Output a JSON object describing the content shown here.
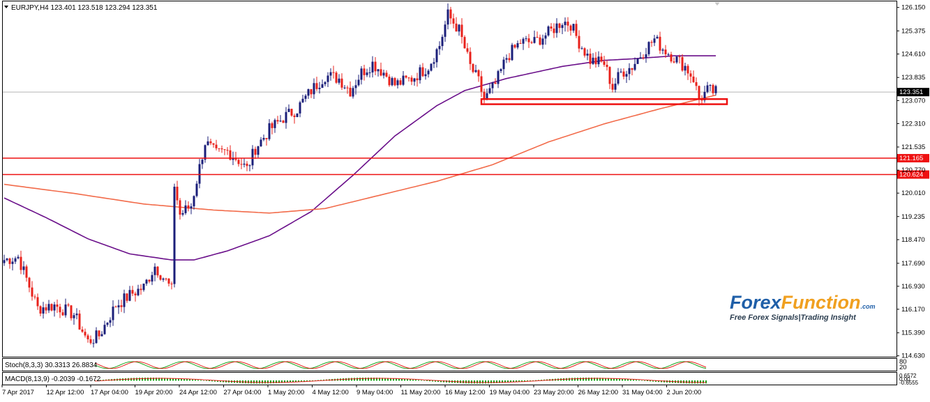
{
  "header": {
    "symbol_info": "EURJPY,H4  123.401 123.518 123.294 123.351",
    "dropdown_icon": "triangle-down-icon"
  },
  "watermark": {
    "brand_part1": "Forex",
    "brand_part2": "Function",
    "brand_suffix": ".com",
    "tagline": "Free Forex Signals|Trading Insight",
    "color1": "#1f5fa8",
    "color2": "#f0a020"
  },
  "chart_data": {
    "type": "candlestick",
    "symbol": "EURJPY",
    "timeframe": "H4",
    "ohlc_current": {
      "open": 123.401,
      "high": 123.518,
      "low": 123.294,
      "close": 123.351
    },
    "ylim": [
      114.9,
      126.4
    ],
    "y_ticks": [
      "126.150",
      "125.375",
      "124.610",
      "123.835",
      "123.070",
      "122.310",
      "121.535",
      "120.770",
      "120.010",
      "119.235",
      "118.470",
      "117.690",
      "116.930",
      "116.170",
      "115.390",
      "114.630"
    ],
    "x_labels": [
      "7 Apr 2017",
      "12 Apr 12:00",
      "17 Apr 04:00",
      "19 Apr 20:00",
      "24 Apr 12:00",
      "27 Apr 04:00",
      "1 May 20:00",
      "4 May 12:00",
      "9 May 04:00",
      "11 May 20:00",
      "16 May 12:00",
      "19 May 04:00",
      "23 May 20:00",
      "26 May 12:00",
      "31 May 04:00",
      "2 Jun 20:00"
    ],
    "current_price": {
      "value": 123.351,
      "label": "123.351"
    },
    "horizontal_levels": [
      {
        "value": 121.165,
        "label": "121.165",
        "color": "#ee1111"
      },
      {
        "value": 120.624,
        "label": "120.624",
        "color": "#ee1111"
      }
    ],
    "support_zone": {
      "y_low": 122.95,
      "y_high": 123.12,
      "x_start_bar": 171,
      "x_end_bar": 259,
      "color": "#ee1111"
    },
    "price_path": [
      [
        0,
        117.8
      ],
      [
        5,
        117.9
      ],
      [
        12,
        116.2
      ],
      [
        18,
        116.3
      ],
      [
        25,
        116.0
      ],
      [
        30,
        115.1
      ],
      [
        34,
        115.3
      ],
      [
        40,
        116.3
      ],
      [
        46,
        116.7
      ],
      [
        50,
        116.9
      ],
      [
        54,
        117.6
      ],
      [
        58,
        117.1
      ],
      [
        60,
        116.8
      ],
      [
        61,
        120.3
      ],
      [
        63,
        119.3
      ],
      [
        67,
        119.6
      ],
      [
        72,
        121.7
      ],
      [
        76,
        121.3
      ],
      [
        80,
        121.4
      ],
      [
        84,
        121.1
      ],
      [
        87,
        120.8
      ],
      [
        90,
        121.5
      ],
      [
        95,
        122.1
      ],
      [
        100,
        122.5
      ],
      [
        105,
        122.8
      ],
      [
        110,
        123.4
      ],
      [
        115,
        123.9
      ],
      [
        120,
        123.8
      ],
      [
        124,
        123.4
      ],
      [
        128,
        124.0
      ],
      [
        132,
        124.3
      ],
      [
        136,
        124.0
      ],
      [
        140,
        123.6
      ],
      [
        146,
        123.8
      ],
      [
        152,
        124.2
      ],
      [
        156,
        124.9
      ],
      [
        159,
        125.9
      ],
      [
        163,
        125.4
      ],
      [
        167,
        124.2
      ],
      [
        170,
        123.7
      ],
      [
        172,
        123.1
      ],
      [
        176,
        123.6
      ],
      [
        180,
        124.5
      ],
      [
        185,
        125.0
      ],
      [
        190,
        125.0
      ],
      [
        195,
        125.3
      ],
      [
        200,
        125.7
      ],
      [
        203,
        125.6
      ],
      [
        206,
        125.0
      ],
      [
        210,
        124.4
      ],
      [
        215,
        124.3
      ],
      [
        218,
        123.5
      ],
      [
        221,
        124.0
      ],
      [
        225,
        124.2
      ],
      [
        229,
        124.7
      ],
      [
        233,
        125.1
      ],
      [
        236,
        124.8
      ],
      [
        240,
        124.5
      ],
      [
        244,
        124.2
      ],
      [
        247,
        123.8
      ],
      [
        249,
        123.1
      ],
      [
        252,
        123.4
      ],
      [
        255,
        123.35
      ]
    ],
    "series": [
      {
        "name": "",
        "color": "#6a0f8a",
        "points": [
          [
            0,
            119.85
          ],
          [
            15,
            119.2
          ],
          [
            30,
            118.5
          ],
          [
            45,
            118.0
          ],
          [
            60,
            117.8
          ],
          [
            68,
            117.8
          ],
          [
            80,
            118.1
          ],
          [
            95,
            118.6
          ],
          [
            110,
            119.4
          ],
          [
            125,
            120.6
          ],
          [
            140,
            121.9
          ],
          [
            155,
            122.9
          ],
          [
            165,
            123.4
          ],
          [
            180,
            123.8
          ],
          [
            200,
            124.2
          ],
          [
            215,
            124.4
          ],
          [
            225,
            124.45
          ],
          [
            240,
            124.55
          ],
          [
            255,
            124.55
          ]
        ]
      },
      {
        "name": "",
        "color": "#f26b4a",
        "points": [
          [
            0,
            120.3
          ],
          [
            25,
            120.0
          ],
          [
            50,
            119.65
          ],
          [
            75,
            119.45
          ],
          [
            95,
            119.35
          ],
          [
            115,
            119.5
          ],
          [
            135,
            119.95
          ],
          [
            155,
            120.4
          ],
          [
            175,
            120.95
          ],
          [
            195,
            121.7
          ],
          [
            215,
            122.3
          ],
          [
            235,
            122.8
          ],
          [
            255,
            123.25
          ]
        ]
      }
    ],
    "total_bars": 256,
    "subpanels": [
      {
        "name": "Stoch(8,3,3) 30.3313 26.8834",
        "right_labels": [
          "80",
          "20"
        ]
      },
      {
        "name": "MACD(8,13,9) -0.2039 -0.1672",
        "right_labels": [
          "0.6572",
          "0.00",
          "-0.6555"
        ]
      }
    ]
  }
}
